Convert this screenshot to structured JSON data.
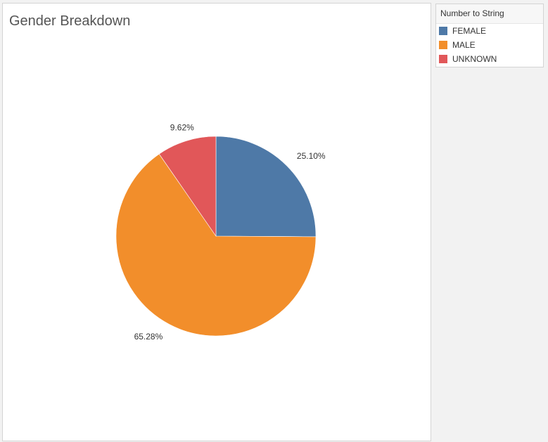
{
  "title": "Gender Breakdown",
  "legend": {
    "title": "Number to String"
  },
  "chart_data": {
    "type": "pie",
    "title": "Gender Breakdown",
    "slices": [
      {
        "category": "FEMALE",
        "value": 25.1,
        "label": "25.10%",
        "color": "#4e79a7"
      },
      {
        "category": "MALE",
        "value": 65.28,
        "label": "65.28%",
        "color": "#f28e2b"
      },
      {
        "category": "UNKNOWN",
        "value": 9.62,
        "label": "9.62%",
        "color": "#e15759"
      }
    ],
    "legend_title": "Number to String",
    "legend_position": "right"
  }
}
